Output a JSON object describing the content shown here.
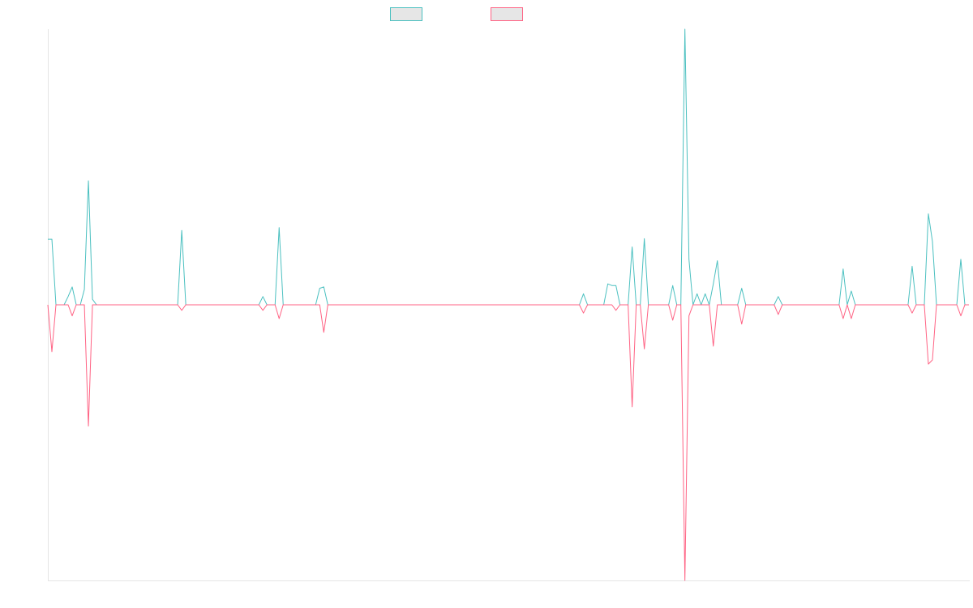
{
  "chart_data": {
    "type": "line",
    "categories": [
      null,
      null,
      null,
      null,
      null,
      null,
      null,
      null,
      null,
      null,
      null,
      null,
      null,
      null,
      null,
      null,
      null,
      null,
      null,
      null,
      null,
      null,
      null,
      null,
      null,
      null,
      null,
      null,
      null,
      null,
      null,
      null,
      null,
      null,
      null,
      null,
      null,
      null,
      null,
      null,
      null,
      null,
      null,
      null,
      null,
      null,
      null,
      null,
      null,
      null,
      null,
      null,
      null,
      null,
      null,
      null,
      null,
      null,
      null,
      null,
      null,
      null,
      null,
      null,
      null,
      null,
      null,
      null,
      null,
      null,
      null,
      null,
      null,
      null,
      null,
      null,
      null,
      null,
      null,
      null,
      null,
      null,
      null,
      null,
      null,
      null,
      null,
      null,
      null,
      null,
      null,
      null,
      null,
      null,
      null,
      null,
      null,
      null,
      null,
      null,
      null,
      null,
      null,
      null,
      null,
      null,
      null,
      null,
      null,
      null,
      null,
      null,
      null,
      null,
      null,
      null,
      null,
      null,
      null,
      null,
      null,
      null,
      null,
      null,
      null,
      null,
      null,
      null,
      null,
      null,
      null,
      null,
      null,
      null,
      null,
      null,
      null,
      null,
      null,
      null,
      null,
      null,
      null,
      null,
      null,
      null,
      null,
      null,
      null,
      null,
      null,
      null,
      null,
      null,
      null,
      null,
      null,
      null,
      null,
      null,
      null,
      null,
      null,
      null,
      null,
      null,
      null,
      null,
      null,
      null,
      null,
      null,
      null,
      null,
      null,
      null,
      null,
      null,
      null,
      null,
      null,
      null,
      null,
      null,
      null,
      null,
      null,
      null,
      null,
      null,
      null,
      null,
      null,
      null,
      null,
      null,
      null,
      null,
      null,
      null,
      null,
      null,
      null,
      null,
      null,
      null,
      null,
      null,
      null,
      null,
      null,
      null,
      null,
      null,
      null,
      null,
      null,
      null,
      null,
      null,
      null,
      null,
      null,
      null,
      null,
      null,
      null,
      null
    ],
    "series": [
      {
        "color": "#4bc0c0",
        "values": [
          23.8,
          23.8,
          0,
          0,
          0,
          3,
          6.5,
          0,
          0,
          5.6,
          45,
          2,
          0,
          0,
          0,
          0,
          0,
          0,
          0,
          0,
          0,
          0,
          0,
          0,
          0,
          0,
          0,
          0,
          0,
          0,
          0,
          0,
          0,
          27,
          0,
          0,
          0,
          0,
          0,
          0,
          0,
          0,
          0,
          0,
          0,
          0,
          0,
          0,
          0,
          0,
          0,
          0,
          0,
          3,
          0,
          0,
          0,
          28,
          0,
          0,
          0,
          0,
          0,
          0,
          0,
          0,
          0,
          6,
          6.5,
          0,
          0,
          0,
          0,
          0,
          0,
          0,
          0,
          0,
          0,
          0,
          0,
          0,
          0,
          0,
          0,
          0,
          0,
          0,
          0,
          0,
          0,
          0,
          0,
          0,
          0,
          0,
          0,
          0,
          0,
          0,
          0,
          0,
          0,
          0,
          0,
          0,
          0,
          0,
          0,
          0,
          0,
          0,
          0,
          0,
          0,
          0,
          0,
          0,
          0,
          0,
          0,
          0,
          0,
          0,
          0,
          0,
          0,
          0,
          0,
          0,
          0,
          0,
          4,
          0,
          0,
          0,
          0,
          0,
          7.6,
          7,
          7,
          0,
          0,
          0,
          21,
          0,
          0,
          24,
          0,
          0,
          0,
          0,
          0,
          0,
          7,
          0,
          0,
          100,
          16.5,
          0,
          4,
          0,
          4,
          0,
          7.6,
          16,
          0,
          0,
          0,
          0,
          0,
          6,
          0,
          0,
          0,
          0,
          0,
          0,
          0,
          0,
          3,
          0,
          0,
          0,
          0,
          0,
          0,
          0,
          0,
          0,
          0,
          0,
          0,
          0,
          0,
          0,
          13,
          0,
          5,
          0,
          0,
          0,
          0,
          0,
          0,
          0,
          0,
          0,
          0,
          0,
          0,
          0,
          0,
          14,
          0,
          0,
          0,
          33,
          23,
          0,
          0,
          0,
          0,
          0,
          0,
          16.5,
          0,
          0
        ]
      },
      {
        "color": "#ff6384",
        "values": [
          0,
          -17,
          0,
          0,
          0,
          0,
          -4,
          0,
          0,
          0,
          -44,
          0,
          0,
          0,
          0,
          0,
          0,
          0,
          0,
          0,
          0,
          0,
          0,
          0,
          0,
          0,
          0,
          0,
          0,
          0,
          0,
          0,
          0,
          -2,
          0,
          0,
          0,
          0,
          0,
          0,
          0,
          0,
          0,
          0,
          0,
          0,
          0,
          0,
          0,
          0,
          0,
          0,
          0,
          -2,
          0,
          0,
          0,
          -5,
          0,
          0,
          0,
          0,
          0,
          0,
          0,
          0,
          0,
          0,
          -10,
          0,
          0,
          0,
          0,
          0,
          0,
          0,
          0,
          0,
          0,
          0,
          0,
          0,
          0,
          0,
          0,
          0,
          0,
          0,
          0,
          0,
          0,
          0,
          0,
          0,
          0,
          0,
          0,
          0,
          0,
          0,
          0,
          0,
          0,
          0,
          0,
          0,
          0,
          0,
          0,
          0,
          0,
          0,
          0,
          0,
          0,
          0,
          0,
          0,
          0,
          0,
          0,
          0,
          0,
          0,
          0,
          0,
          0,
          0,
          0,
          0,
          0,
          0,
          -3,
          0,
          0,
          0,
          0,
          0,
          0,
          0,
          -2,
          0,
          0,
          0,
          -37,
          0,
          0,
          -16,
          0,
          0,
          0,
          0,
          0,
          0,
          -5.6,
          0,
          0,
          -100,
          -4,
          0,
          0,
          0,
          0,
          0,
          -15,
          0,
          0,
          0,
          0,
          0,
          0,
          -7,
          0,
          0,
          0,
          0,
          0,
          0,
          0,
          0,
          -3.5,
          0,
          0,
          0,
          0,
          0,
          0,
          0,
          0,
          0,
          0,
          0,
          0,
          0,
          0,
          0,
          -5,
          0,
          -5,
          0,
          0,
          0,
          0,
          0,
          0,
          0,
          0,
          0,
          0,
          0,
          0,
          0,
          0,
          -3,
          0,
          0,
          0,
          -21.5,
          -20,
          0,
          0,
          0,
          0,
          0,
          0,
          -4,
          0,
          0
        ]
      }
    ],
    "ylim": [
      -100,
      100
    ]
  }
}
